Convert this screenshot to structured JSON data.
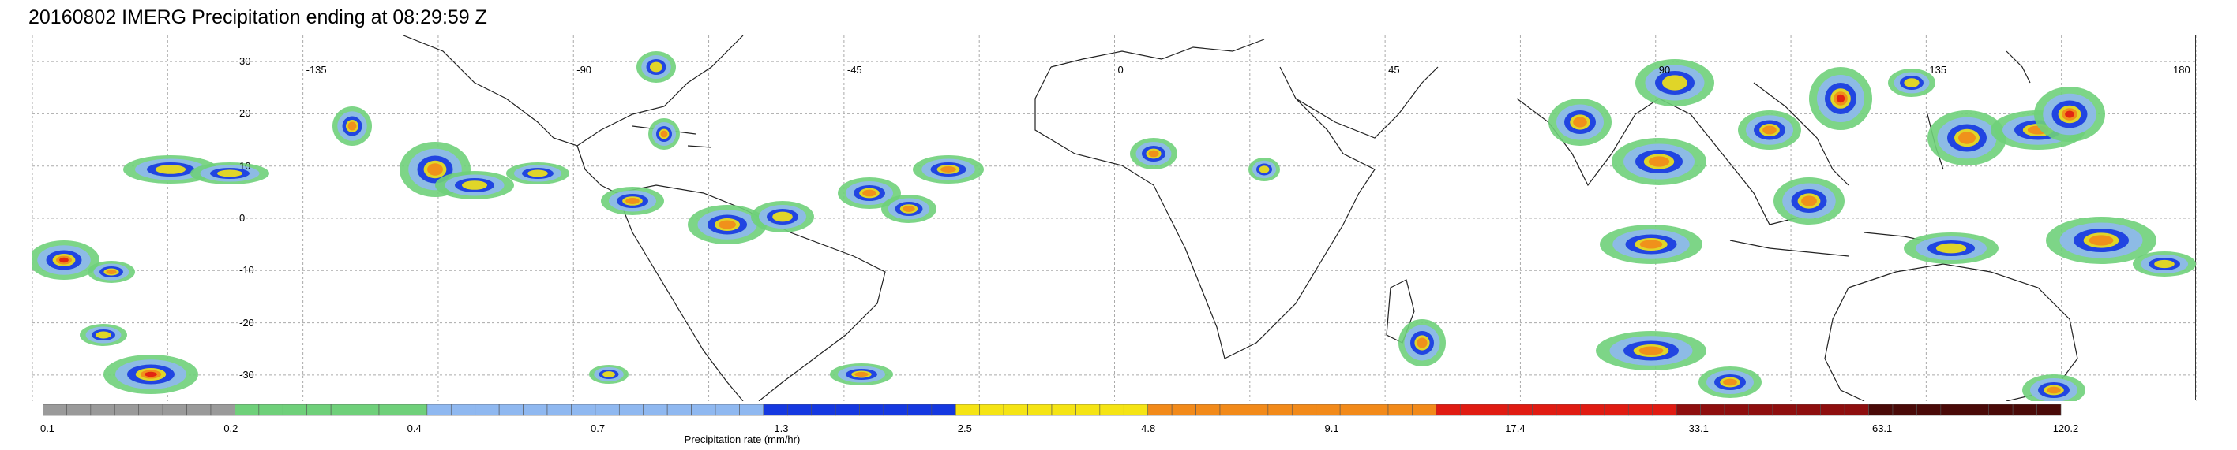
{
  "title": "20160802 IMERG Precipitation ending at 08:29:59 Z",
  "map": {
    "lon_labels": [
      "-135",
      "-90",
      "-45",
      "0",
      "45",
      "90",
      "135",
      "180"
    ],
    "lat_labels": [
      "30",
      "20",
      "10",
      "0",
      "-10",
      "-20",
      "-30"
    ],
    "gridlines": true
  },
  "colorbar": {
    "title": "Precipitation rate (mm/hr)",
    "tick_labels": [
      "0.1",
      "0.2",
      "0.4",
      "0.7",
      "1.3",
      "2.5",
      "4.8",
      "9.1",
      "17.4",
      "33.1",
      "63.1",
      "120.2"
    ],
    "colors": {
      "gray": "#9a9a9a",
      "green": "#6fd07a",
      "light_blue": "#8fb8f0",
      "blue": "#1538e0",
      "yellow": "#f5e414",
      "orange": "#f28a1a",
      "red": "#e01b12",
      "dark_red": "#8e0e0e",
      "very_dark_red": "#4a0a08"
    }
  }
}
